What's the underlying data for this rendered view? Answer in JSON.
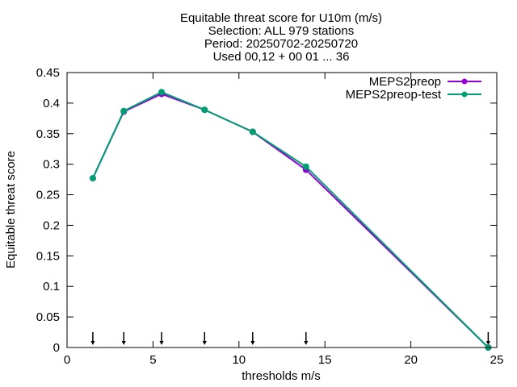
{
  "title_lines": [
    "Equitable threat score  for U10m (m/s)",
    "Selection: ALL    979 stations",
    "Period: 20250702-20250720",
    "Used 00,12 + 00 01 ... 36"
  ],
  "colors": {
    "MEPS2preop": "#9400d3",
    "MEPS2preop-test": "#009e73",
    "axis": "#000000",
    "arrow": "#000000"
  },
  "chart_data": {
    "type": "line",
    "title": "Equitable threat score  for U10m (m/s)",
    "xlabel": "thresholds m/s",
    "ylabel": "Equitable threat score",
    "xlim": [
      0,
      25
    ],
    "ylim": [
      0,
      0.45
    ],
    "x_ticks": [
      "0",
      "5",
      "10",
      "15",
      "20",
      "25"
    ],
    "x_tick_values": [
      0,
      5,
      10,
      15,
      20,
      25
    ],
    "y_ticks": [
      "0",
      "0.05",
      "0.1",
      "0.15",
      "0.2",
      "0.25",
      "0.3",
      "0.35",
      "0.4",
      "0.45"
    ],
    "y_tick_values": [
      0,
      0.05,
      0.1,
      0.15,
      0.2,
      0.25,
      0.3,
      0.35,
      0.4,
      0.45
    ],
    "grid": false,
    "legend_position": "top-right",
    "threshold_markers": [
      1.5,
      3.3,
      5.5,
      8.0,
      10.8,
      13.9,
      24.5
    ],
    "series": [
      {
        "name": "MEPS2preop",
        "x": [
          1.5,
          3.3,
          5.5,
          8.0,
          10.8,
          13.9,
          24.5
        ],
        "y": [
          0.277,
          0.386,
          0.415,
          0.389,
          0.353,
          0.291,
          0.0
        ]
      },
      {
        "name": "MEPS2preop-test",
        "x": [
          1.5,
          3.3,
          5.5,
          8.0,
          10.8,
          13.9,
          24.5
        ],
        "y": [
          0.277,
          0.387,
          0.418,
          0.389,
          0.353,
          0.296,
          0.0
        ]
      }
    ]
  }
}
